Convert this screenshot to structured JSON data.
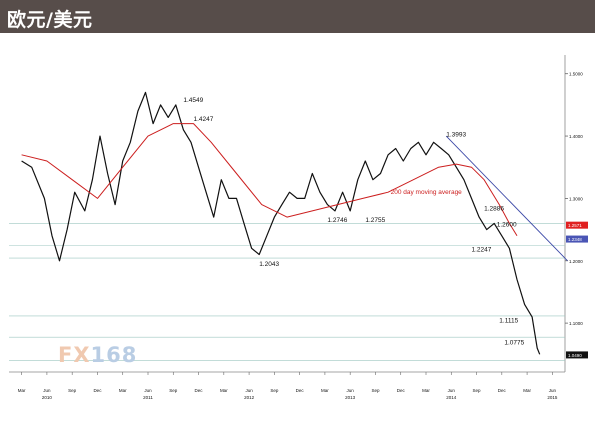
{
  "header": {
    "title": "欧元/美元"
  },
  "watermark": {
    "brand": "FX",
    "number": "168"
  },
  "chart_data": {
    "type": "line",
    "title": "欧元/美元",
    "ylim": [
      1.02,
      1.53
    ],
    "y_ticks": [
      {
        "value": 1.5,
        "label": "1.5000"
      },
      {
        "value": 1.4,
        "label": "1.4000"
      },
      {
        "value": 1.3,
        "label": "1.3000"
      },
      {
        "value": 1.2,
        "label": "1.2000"
      },
      {
        "value": 1.1,
        "label": "1.1000"
      }
    ],
    "x_month_labels": [
      "Mar",
      "Jun",
      "Sep",
      "Dec",
      "Mar",
      "Jun",
      "Sep",
      "Dec",
      "Mar",
      "Jun",
      "Sep",
      "Dec",
      "Mar",
      "Jun",
      "Sep",
      "Dec",
      "Mar",
      "Jun",
      "Sep",
      "Dec",
      "Mar",
      "Jun"
    ],
    "x_year_labels": [
      {
        "label": "2010",
        "index": 1
      },
      {
        "label": "2011",
        "index": 5
      },
      {
        "label": "2012",
        "index": 9
      },
      {
        "label": "2013",
        "index": 13
      },
      {
        "label": "2014",
        "index": 17
      },
      {
        "label": "2015",
        "index": 21
      }
    ],
    "series": [
      {
        "name": "EUR/USD",
        "color": "#111111",
        "points": [
          [
            0,
            1.36
          ],
          [
            0.4,
            1.35
          ],
          [
            0.9,
            1.3
          ],
          [
            1.2,
            1.24
          ],
          [
            1.5,
            1.2
          ],
          [
            1.8,
            1.25
          ],
          [
            2.1,
            1.31
          ],
          [
            2.5,
            1.28
          ],
          [
            2.8,
            1.33
          ],
          [
            3.1,
            1.4
          ],
          [
            3.4,
            1.34
          ],
          [
            3.7,
            1.29
          ],
          [
            4.0,
            1.36
          ],
          [
            4.3,
            1.39
          ],
          [
            4.6,
            1.44
          ],
          [
            4.9,
            1.47
          ],
          [
            5.2,
            1.42
          ],
          [
            5.5,
            1.45
          ],
          [
            5.8,
            1.43
          ],
          [
            6.1,
            1.45
          ],
          [
            6.4,
            1.41
          ],
          [
            6.7,
            1.39
          ],
          [
            7.0,
            1.35
          ],
          [
            7.3,
            1.31
          ],
          [
            7.6,
            1.27
          ],
          [
            7.9,
            1.33
          ],
          [
            8.2,
            1.3
          ],
          [
            8.5,
            1.3
          ],
          [
            8.8,
            1.26
          ],
          [
            9.1,
            1.22
          ],
          [
            9.4,
            1.21
          ],
          [
            9.7,
            1.24
          ],
          [
            10.0,
            1.27
          ],
          [
            10.3,
            1.29
          ],
          [
            10.6,
            1.31
          ],
          [
            10.9,
            1.3
          ],
          [
            11.2,
            1.3
          ],
          [
            11.5,
            1.34
          ],
          [
            11.8,
            1.31
          ],
          [
            12.1,
            1.29
          ],
          [
            12.4,
            1.28
          ],
          [
            12.7,
            1.31
          ],
          [
            13.0,
            1.28
          ],
          [
            13.3,
            1.33
          ],
          [
            13.6,
            1.36
          ],
          [
            13.9,
            1.33
          ],
          [
            14.2,
            1.34
          ],
          [
            14.5,
            1.37
          ],
          [
            14.8,
            1.38
          ],
          [
            15.1,
            1.36
          ],
          [
            15.4,
            1.38
          ],
          [
            15.7,
            1.39
          ],
          [
            16.0,
            1.37
          ],
          [
            16.3,
            1.39
          ],
          [
            16.6,
            1.38
          ],
          [
            16.9,
            1.37
          ],
          [
            17.2,
            1.35
          ],
          [
            17.5,
            1.33
          ],
          [
            17.8,
            1.3
          ],
          [
            18.1,
            1.27
          ],
          [
            18.4,
            1.25
          ],
          [
            18.7,
            1.26
          ],
          [
            19.0,
            1.24
          ],
          [
            19.3,
            1.22
          ],
          [
            19.6,
            1.17
          ],
          [
            19.9,
            1.13
          ],
          [
            20.2,
            1.11
          ],
          [
            20.4,
            1.06
          ],
          [
            20.5,
            1.05
          ]
        ]
      },
      {
        "name": "200 day moving average",
        "color": "#cc1f1f",
        "points": [
          [
            0,
            1.37
          ],
          [
            1.0,
            1.36
          ],
          [
            2.0,
            1.33
          ],
          [
            3.0,
            1.3
          ],
          [
            4.0,
            1.35
          ],
          [
            5.0,
            1.4
          ],
          [
            6.0,
            1.42
          ],
          [
            6.8,
            1.42
          ],
          [
            7.5,
            1.39
          ],
          [
            8.5,
            1.34
          ],
          [
            9.5,
            1.29
          ],
          [
            10.5,
            1.27
          ],
          [
            11.5,
            1.28
          ],
          [
            12.5,
            1.29
          ],
          [
            13.5,
            1.3
          ],
          [
            14.5,
            1.31
          ],
          [
            15.5,
            1.33
          ],
          [
            16.5,
            1.35
          ],
          [
            17.2,
            1.355
          ],
          [
            17.8,
            1.35
          ],
          [
            18.3,
            1.33
          ],
          [
            18.9,
            1.29
          ],
          [
            19.3,
            1.26
          ],
          [
            19.6,
            1.24
          ]
        ]
      }
    ],
    "trendline": {
      "color": "#3d4aa8",
      "from": [
        16.8,
        1.4
      ],
      "to": [
        21.6,
        1.2
      ]
    },
    "price_levels": [
      1.26,
      1.2247,
      1.2043,
      1.1115,
      1.0775,
      1.04
    ],
    "annotations": [
      {
        "label": "1.4549",
        "x": 6.4,
        "y": 1.455,
        "anchor": "start"
      },
      {
        "label": "1.4247",
        "x": 6.8,
        "y": 1.424,
        "anchor": "start"
      },
      {
        "label": "1.3993",
        "x": 16.8,
        "y": 1.399,
        "anchor": "start"
      },
      {
        "label": "1.2886",
        "x": 18.3,
        "y": 1.281,
        "anchor": "start"
      },
      {
        "label": "1.2600",
        "x": 18.8,
        "y": 1.255,
        "anchor": "start"
      },
      {
        "label": "1.2247",
        "x": 17.8,
        "y": 1.215,
        "anchor": "start"
      },
      {
        "label": "1.2043",
        "x": 9.4,
        "y": 1.192,
        "anchor": "start"
      },
      {
        "label": "1.2746",
        "x": 12.1,
        "y": 1.262,
        "anchor": "start"
      },
      {
        "label": "1.2755",
        "x": 13.6,
        "y": 1.262,
        "anchor": "start"
      },
      {
        "label": "200 day moving average",
        "x": 14.6,
        "y": 1.307,
        "anchor": "start",
        "color": "#cc1f1f"
      },
      {
        "label": "1.1115",
        "x": 18.9,
        "y": 1.101,
        "anchor": "start"
      },
      {
        "label": "1.0775",
        "x": 19.1,
        "y": 1.066,
        "anchor": "start"
      }
    ],
    "price_tags": [
      {
        "label": "1.2571",
        "value": 1.2571,
        "bg": "#e02020",
        "fg": "#ffffff"
      },
      {
        "label": "1.2348",
        "value": 1.2348,
        "bg": "#4a55b5",
        "fg": "#ffffff"
      },
      {
        "label": "1.0490",
        "value": 1.049,
        "bg": "#111111",
        "fg": "#ffffff"
      }
    ]
  }
}
